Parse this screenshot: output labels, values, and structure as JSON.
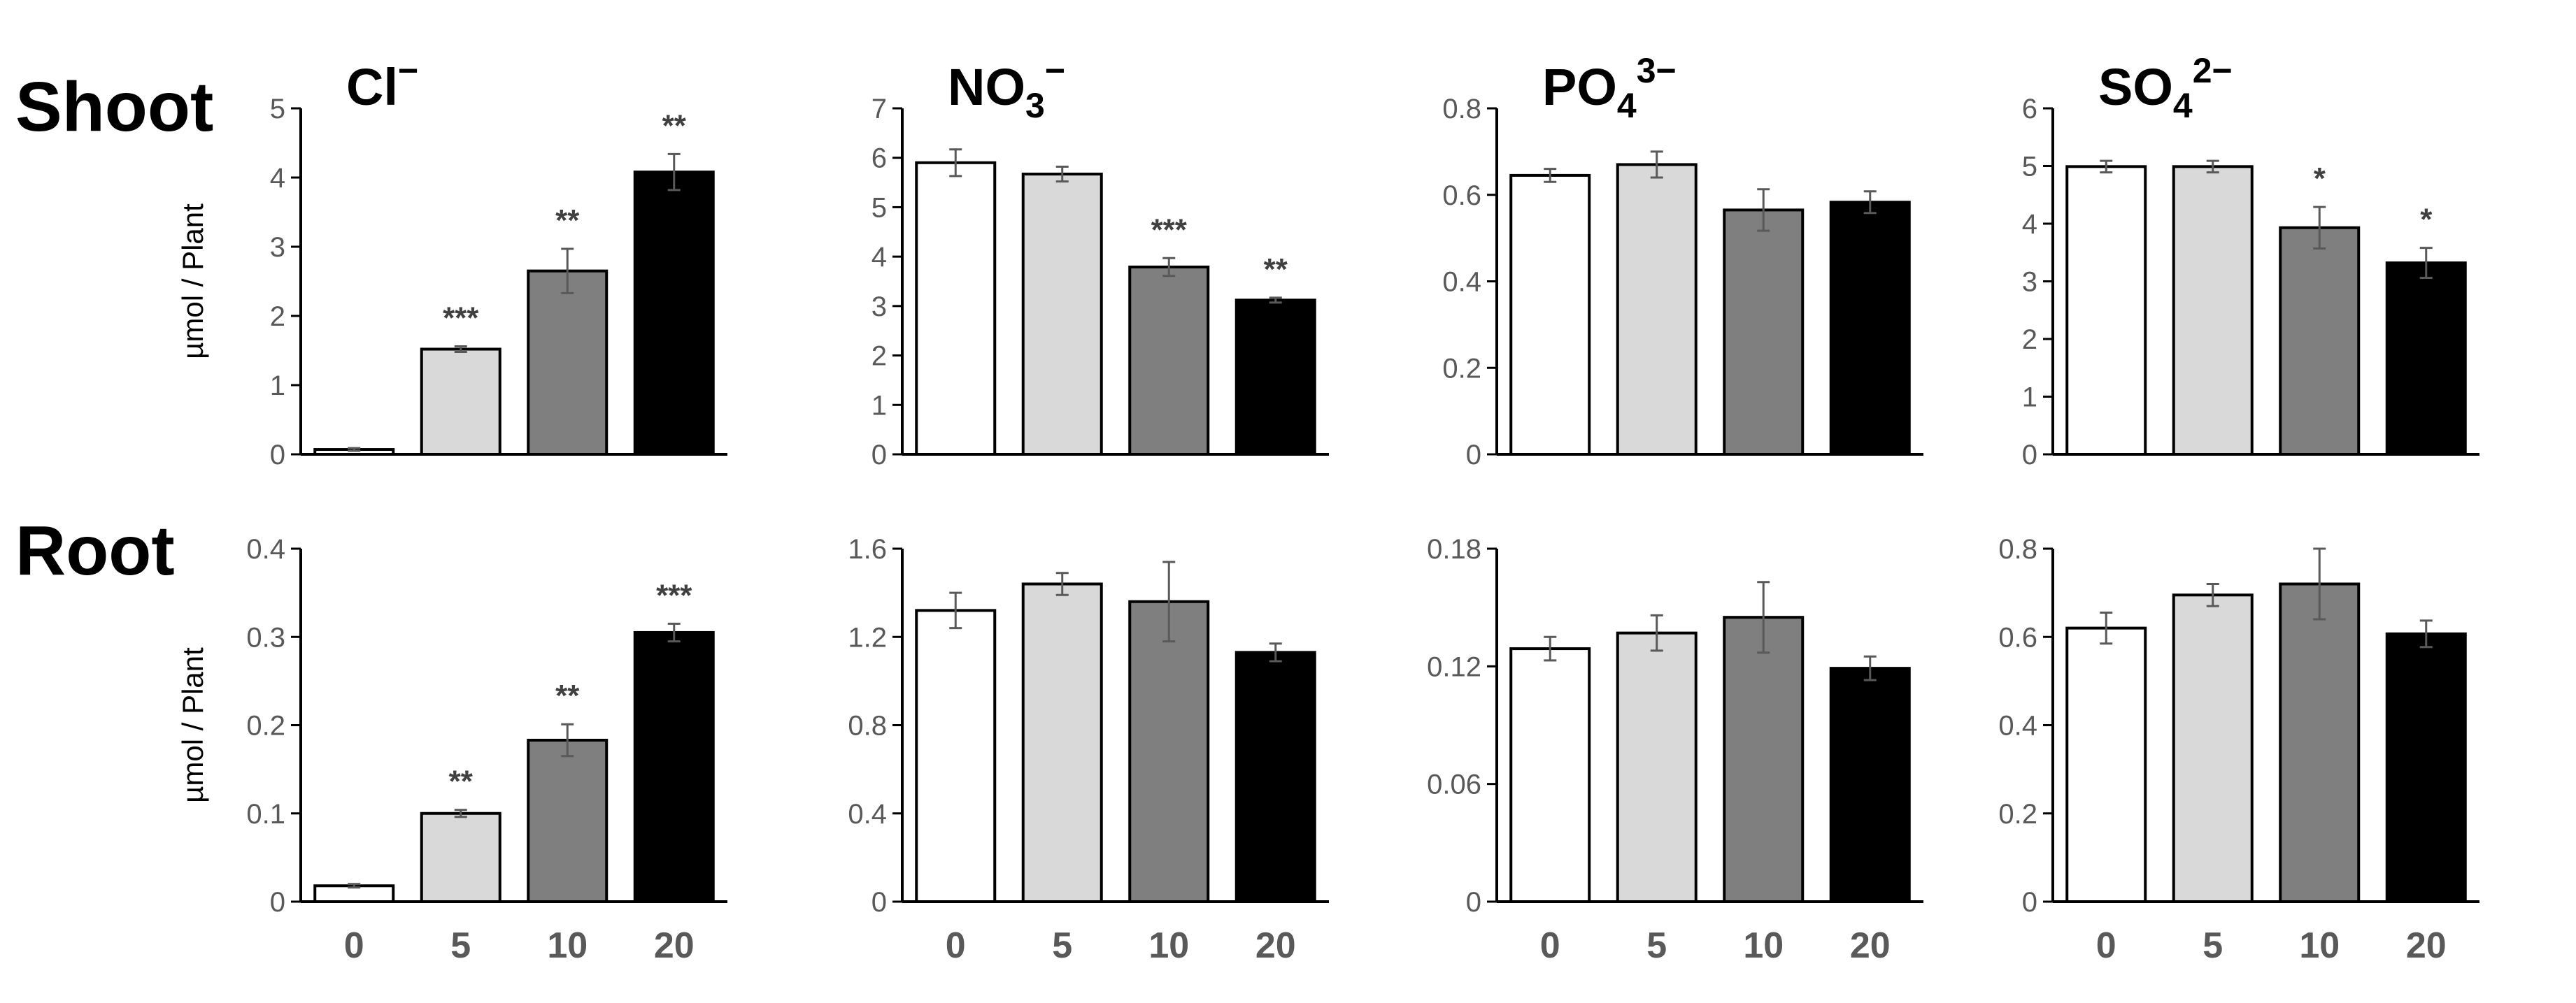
{
  "figure": {
    "row_labels": [
      "Shoot",
      "Root"
    ],
    "ylabel": "µmol / Plant",
    "bar_colors": [
      "#ffffff",
      "#d9d9d9",
      "#7f7f7f",
      "#000000"
    ],
    "edge_color": "#000000",
    "axis_color": "#000000",
    "errorbar_color": "#595959"
  },
  "chart_data": [
    {
      "type": "bar",
      "row": "Shoot",
      "title": {
        "main": "Cl",
        "sub": "",
        "sup": "−"
      },
      "categories": [
        "0",
        "5",
        "10",
        "20"
      ],
      "values": [
        0.07,
        1.52,
        2.65,
        4.08
      ],
      "errors": [
        0.02,
        0.04,
        0.32,
        0.26
      ],
      "significance": [
        "",
        "***",
        "**",
        "**"
      ],
      "ylim": [
        0,
        5
      ],
      "yticks": [
        "0",
        "1",
        "2",
        "3",
        "4",
        "5"
      ],
      "ylabel": "µmol / Plant",
      "show_xticks": false
    },
    {
      "type": "bar",
      "row": "Shoot",
      "title": {
        "main": "NO",
        "sub": "3",
        "sup": "−"
      },
      "categories": [
        "0",
        "5",
        "10",
        "20"
      ],
      "values": [
        5.9,
        5.67,
        3.79,
        3.12
      ],
      "errors": [
        0.27,
        0.15,
        0.18,
        0.05
      ],
      "significance": [
        "",
        "",
        "***",
        "**"
      ],
      "ylim": [
        0,
        7
      ],
      "yticks": [
        "0",
        "1",
        "2",
        "3",
        "4",
        "5",
        "6",
        "7"
      ],
      "ylabel": "",
      "show_xticks": false
    },
    {
      "type": "bar",
      "row": "Shoot",
      "title": {
        "main": "PO",
        "sub": "4",
        "sup": "3−"
      },
      "categories": [
        "0",
        "5",
        "10",
        "20"
      ],
      "values": [
        0.645,
        0.67,
        0.565,
        0.583
      ],
      "errors": [
        0.015,
        0.03,
        0.048,
        0.025
      ],
      "significance": [
        "",
        "",
        "",
        ""
      ],
      "ylim": [
        0,
        0.8
      ],
      "yticks": [
        "0",
        "0.2",
        "0.4",
        "0.6",
        "0.8"
      ],
      "ylabel": "",
      "show_xticks": false
    },
    {
      "type": "bar",
      "row": "Shoot",
      "title": {
        "main": "SO",
        "sub": "4",
        "sup": "2−"
      },
      "categories": [
        "0",
        "5",
        "10",
        "20"
      ],
      "values": [
        4.99,
        4.99,
        3.93,
        3.32
      ],
      "errors": [
        0.1,
        0.1,
        0.36,
        0.26
      ],
      "significance": [
        "",
        "",
        "*",
        "*"
      ],
      "ylim": [
        0,
        6
      ],
      "yticks": [
        "0",
        "1",
        "2",
        "3",
        "4",
        "5",
        "6"
      ],
      "ylabel": "",
      "show_xticks": false
    },
    {
      "type": "bar",
      "row": "Root",
      "title": {
        "main": "",
        "sub": "",
        "sup": ""
      },
      "categories": [
        "0",
        "5",
        "10",
        "20"
      ],
      "values": [
        0.018,
        0.1,
        0.183,
        0.305
      ],
      "errors": [
        0.002,
        0.004,
        0.018,
        0.01
      ],
      "significance": [
        "",
        "**",
        "**",
        "***"
      ],
      "ylim": [
        0,
        0.4
      ],
      "yticks": [
        "0",
        "0.1",
        "0.2",
        "0.3",
        "0.4"
      ],
      "ylabel": "µmol / Plant",
      "show_xticks": true
    },
    {
      "type": "bar",
      "row": "Root",
      "title": {
        "main": "",
        "sub": "",
        "sup": ""
      },
      "categories": [
        "0",
        "5",
        "10",
        "20"
      ],
      "values": [
        1.32,
        1.44,
        1.36,
        1.13
      ],
      "errors": [
        0.08,
        0.05,
        0.18,
        0.04
      ],
      "significance": [
        "",
        "",
        "",
        ""
      ],
      "ylim": [
        0,
        1.6
      ],
      "yticks": [
        "0",
        "0.4",
        "0.8",
        "1.2",
        "1.6"
      ],
      "ylabel": "",
      "show_xticks": true
    },
    {
      "type": "bar",
      "row": "Root",
      "title": {
        "main": "",
        "sub": "",
        "sup": ""
      },
      "categories": [
        "0",
        "5",
        "10",
        "20"
      ],
      "values": [
        0.129,
        0.137,
        0.145,
        0.119
      ],
      "errors": [
        0.006,
        0.009,
        0.018,
        0.006
      ],
      "significance": [
        "",
        "",
        "",
        ""
      ],
      "ylim": [
        0,
        0.18
      ],
      "yticks": [
        "0",
        "0.06",
        "0.12",
        "0.18"
      ],
      "ylabel": "",
      "show_xticks": true
    },
    {
      "type": "bar",
      "row": "Root",
      "title": {
        "main": "",
        "sub": "",
        "sup": ""
      },
      "categories": [
        "0",
        "5",
        "10",
        "20"
      ],
      "values": [
        0.62,
        0.695,
        0.72,
        0.607
      ],
      "errors": [
        0.035,
        0.025,
        0.08,
        0.03
      ],
      "significance": [
        "",
        "",
        "",
        ""
      ],
      "ylim": [
        0,
        0.8
      ],
      "yticks": [
        "0",
        "0.2",
        "0.4",
        "0.6",
        "0.8"
      ],
      "ylabel": "",
      "show_xticks": true
    }
  ]
}
